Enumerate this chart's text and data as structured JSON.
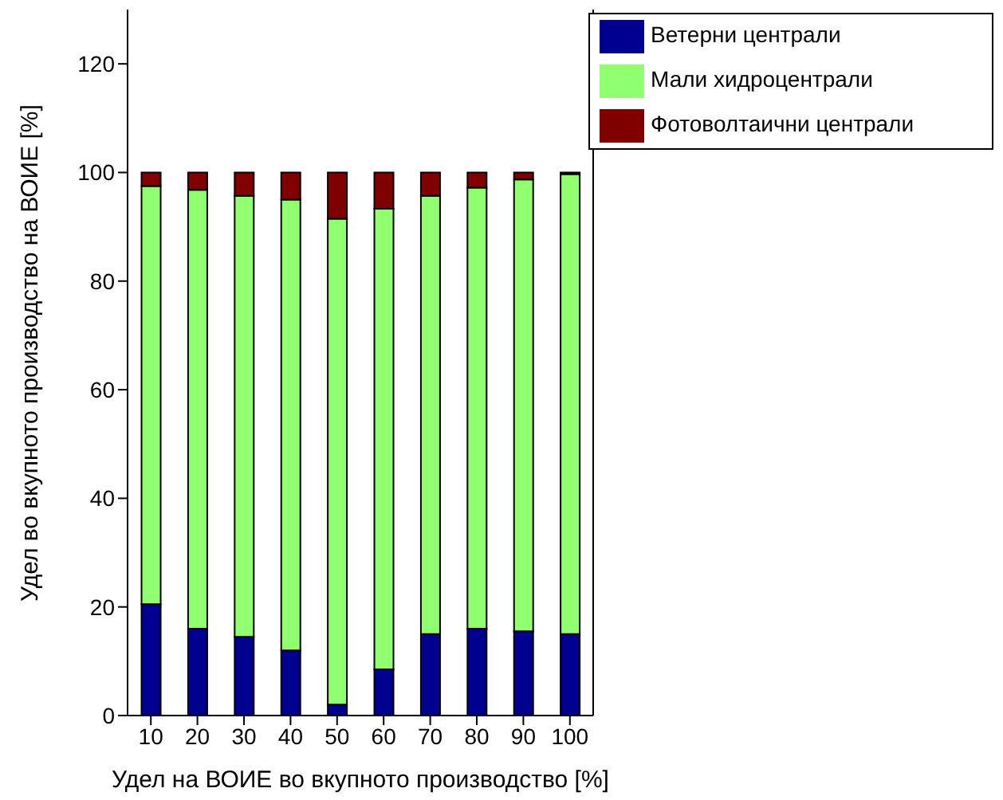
{
  "chart_data": {
    "type": "bar",
    "stacked": true,
    "xlabel": "Удел на ВОИЕ во вкупното производство [%]",
    "ylabel": "Удел во вкупното производство на ВОИЕ [%]",
    "categories": [
      "10",
      "20",
      "30",
      "40",
      "50",
      "60",
      "70",
      "80",
      "90",
      "100"
    ],
    "series": [
      {
        "name": "Ветерни централи",
        "color": "#000090",
        "values": [
          20.5,
          16,
          14.5,
          12,
          2,
          8.5,
          15,
          16,
          15.5,
          15
        ]
      },
      {
        "name": "Мали хидроцентрали",
        "color": "#90ff70",
        "values": [
          77,
          80.8,
          81.2,
          83,
          89.5,
          84.8,
          80.7,
          81.2,
          83.2,
          84.7
        ]
      },
      {
        "name": "Фотоволтаични централи",
        "color": "#800000",
        "values": [
          2.5,
          3.2,
          4.3,
          5,
          8.5,
          6.7,
          4.3,
          2.8,
          1.3,
          0.3
        ]
      }
    ],
    "ylim": [
      0,
      130
    ],
    "yticks": [
      0,
      20,
      40,
      60,
      80,
      100,
      120
    ],
    "legend": "top right"
  }
}
